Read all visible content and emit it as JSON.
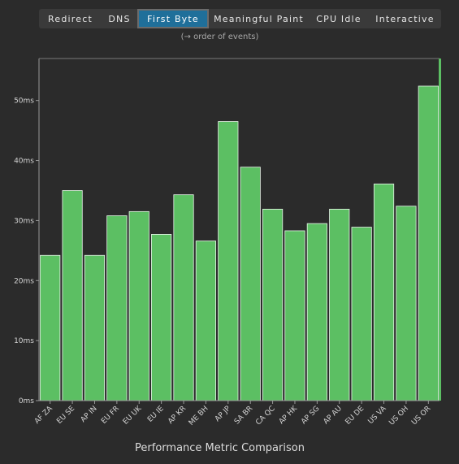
{
  "tabs": [
    {
      "label": "Redirect",
      "active": false
    },
    {
      "label": "DNS",
      "active": false
    },
    {
      "label": "First Byte",
      "active": true
    },
    {
      "label": "Meaningful Paint",
      "active": false
    },
    {
      "label": "CPU Idle",
      "active": false
    },
    {
      "label": "Interactive",
      "active": false
    }
  ],
  "note": "(→ order of events)",
  "colors": {
    "bar": "#5cbf63",
    "bar_stroke": "#e8f5e9",
    "accent_tab": "#1f6f9a"
  },
  "chart_data": {
    "type": "bar",
    "title": "",
    "xlabel": "Performance Metric Comparison",
    "ylabel": "",
    "unit": "ms",
    "ylim": [
      0,
      57
    ],
    "yticks": [
      0,
      10,
      20,
      30,
      40,
      50
    ],
    "ytick_labels": [
      "0ms",
      "10ms",
      "20ms",
      "30ms",
      "40ms",
      "50ms"
    ],
    "categories": [
      "AF ZA",
      "EU SE",
      "AP IN",
      "EU FR",
      "EU UK",
      "EU IE",
      "AP KR",
      "ME BH",
      "AP JP",
      "SA BR",
      "CA QC",
      "AP HK",
      "AP SG",
      "AP AU",
      "EU DE",
      "US VA",
      "US OH",
      "US OR"
    ],
    "values": [
      24.2,
      35.0,
      24.2,
      30.8,
      31.5,
      27.7,
      34.3,
      26.6,
      46.5,
      38.9,
      31.9,
      28.3,
      29.5,
      31.9,
      28.9,
      36.1,
      32.4,
      52.4
    ],
    "grid": false
  }
}
